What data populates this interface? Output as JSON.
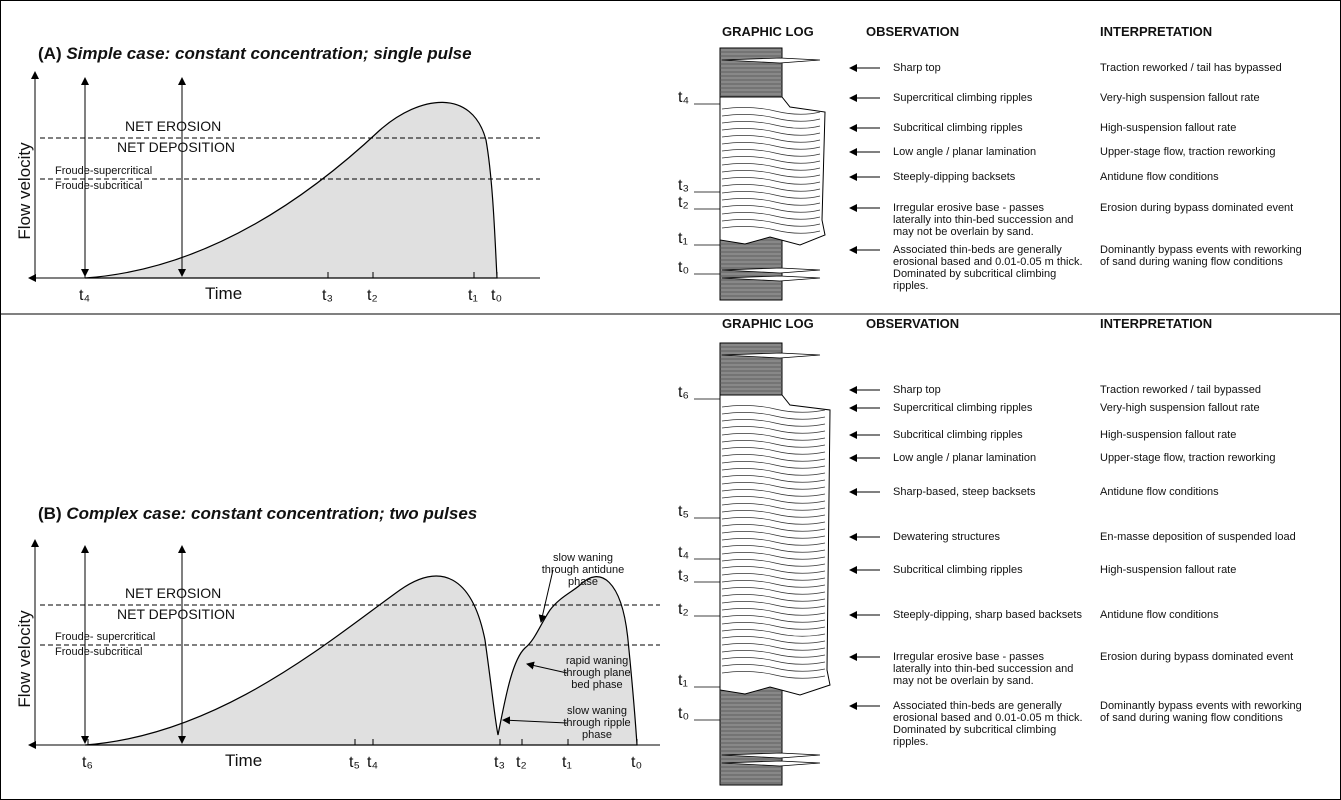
{
  "panels": [
    {
      "label": "(A)",
      "title": "Simple case: constant concentration; single pulse",
      "y_axis_label": "Flow velocity",
      "x_axis_label": "Time",
      "thresholds": {
        "erosion": "NET EROSION",
        "deposition": "NET DEPOSITION",
        "supercritical": "Froude-supercritical",
        "subcritical": "Froude-subcritical"
      },
      "time_marks": [
        "t₄",
        "t₃",
        "t₂",
        "t₁",
        "t₀"
      ],
      "annotations": [],
      "log": {
        "headers": [
          "GRAPHIC LOG",
          "OBSERVATION",
          "INTERPRETATION"
        ],
        "time_marks": [
          "t₄",
          "t₃",
          "t₂",
          "t₁",
          "t₀"
        ],
        "rows": [
          {
            "observation": "Sharp top",
            "interpretation": "Traction reworked / tail has bypassed"
          },
          {
            "observation": "Supercritical climbing ripples",
            "interpretation": "Very-high suspension fallout rate"
          },
          {
            "observation": "Subcritical climbing ripples",
            "interpretation": "High-suspension fallout rate"
          },
          {
            "observation": "Low angle / planar lamination",
            "interpretation": "Upper-stage flow, traction reworking"
          },
          {
            "observation": "Steeply-dipping backsets",
            "interpretation": "Antidune flow conditions"
          },
          {
            "observation": "Irregular erosive base - passes laterally into thin-bed succession and may not be overlain by sand.",
            "interpretation": "Erosion during bypass dominated event"
          },
          {
            "observation": "Associated thin-beds are generally erosional based and 0.01-0.05 m thick. Dominated by subcritical climbing ripples.",
            "interpretation": "Dominantly bypass events with reworking of sand during waning flow conditions"
          }
        ]
      }
    },
    {
      "label": "(B)",
      "title": "Complex case: constant concentration; two pulses",
      "y_axis_label": "Flow velocity",
      "x_axis_label": "Time",
      "thresholds": {
        "erosion": "NET EROSION",
        "deposition": "NET DEPOSITION",
        "supercritical": "Froude- supercritical",
        "subcritical": "Froude-subcritical"
      },
      "time_marks": [
        "t₆",
        "t₅",
        "t₄",
        "t₃",
        "t₂",
        "t₁",
        "t₀"
      ],
      "annotations": [
        [
          "slow waning",
          "through antidune",
          "phase"
        ],
        [
          "rapid waning",
          "through plane",
          "bed phase"
        ],
        [
          "slow waning",
          "through ripple",
          "phase"
        ]
      ],
      "log": {
        "headers": [
          "GRAPHIC LOG",
          "OBSERVATION",
          "INTERPRETATION"
        ],
        "time_marks": [
          "t₆",
          "t₅",
          "t₄",
          "t₃",
          "t₂",
          "t₁",
          "t₀"
        ],
        "rows": [
          {
            "observation": "Sharp top",
            "interpretation": "Traction reworked / tail bypassed"
          },
          {
            "observation": "Supercritical climbing ripples",
            "interpretation": "Very-high suspension fallout rate"
          },
          {
            "observation": "Subcritical climbing ripples",
            "interpretation": "High-suspension fallout rate"
          },
          {
            "observation": "Low angle / planar lamination",
            "interpretation": "Upper-stage flow, traction reworking"
          },
          {
            "observation": "Sharp-based, steep backsets",
            "interpretation": "Antidune flow conditions"
          },
          {
            "observation": "Dewatering structures",
            "interpretation": "En-masse deposition of suspended load"
          },
          {
            "observation": "Subcritical climbing ripples",
            "interpretation": "High-suspension fallout rate"
          },
          {
            "observation": "Steeply-dipping, sharp based backsets",
            "interpretation": "Antidune flow conditions"
          },
          {
            "observation": "Irregular erosive base - passes laterally into thin-bed succession and may not be overlain by sand.",
            "interpretation": "Erosion during bypass dominated event"
          },
          {
            "observation": "Associated thin-beds are generally erosional  based and 0.01-0.05 m thick. Dominated by subcritical climbing ripples.",
            "interpretation": "Dominantly bypass events with reworking of sand during waning flow conditions"
          }
        ]
      }
    }
  ]
}
